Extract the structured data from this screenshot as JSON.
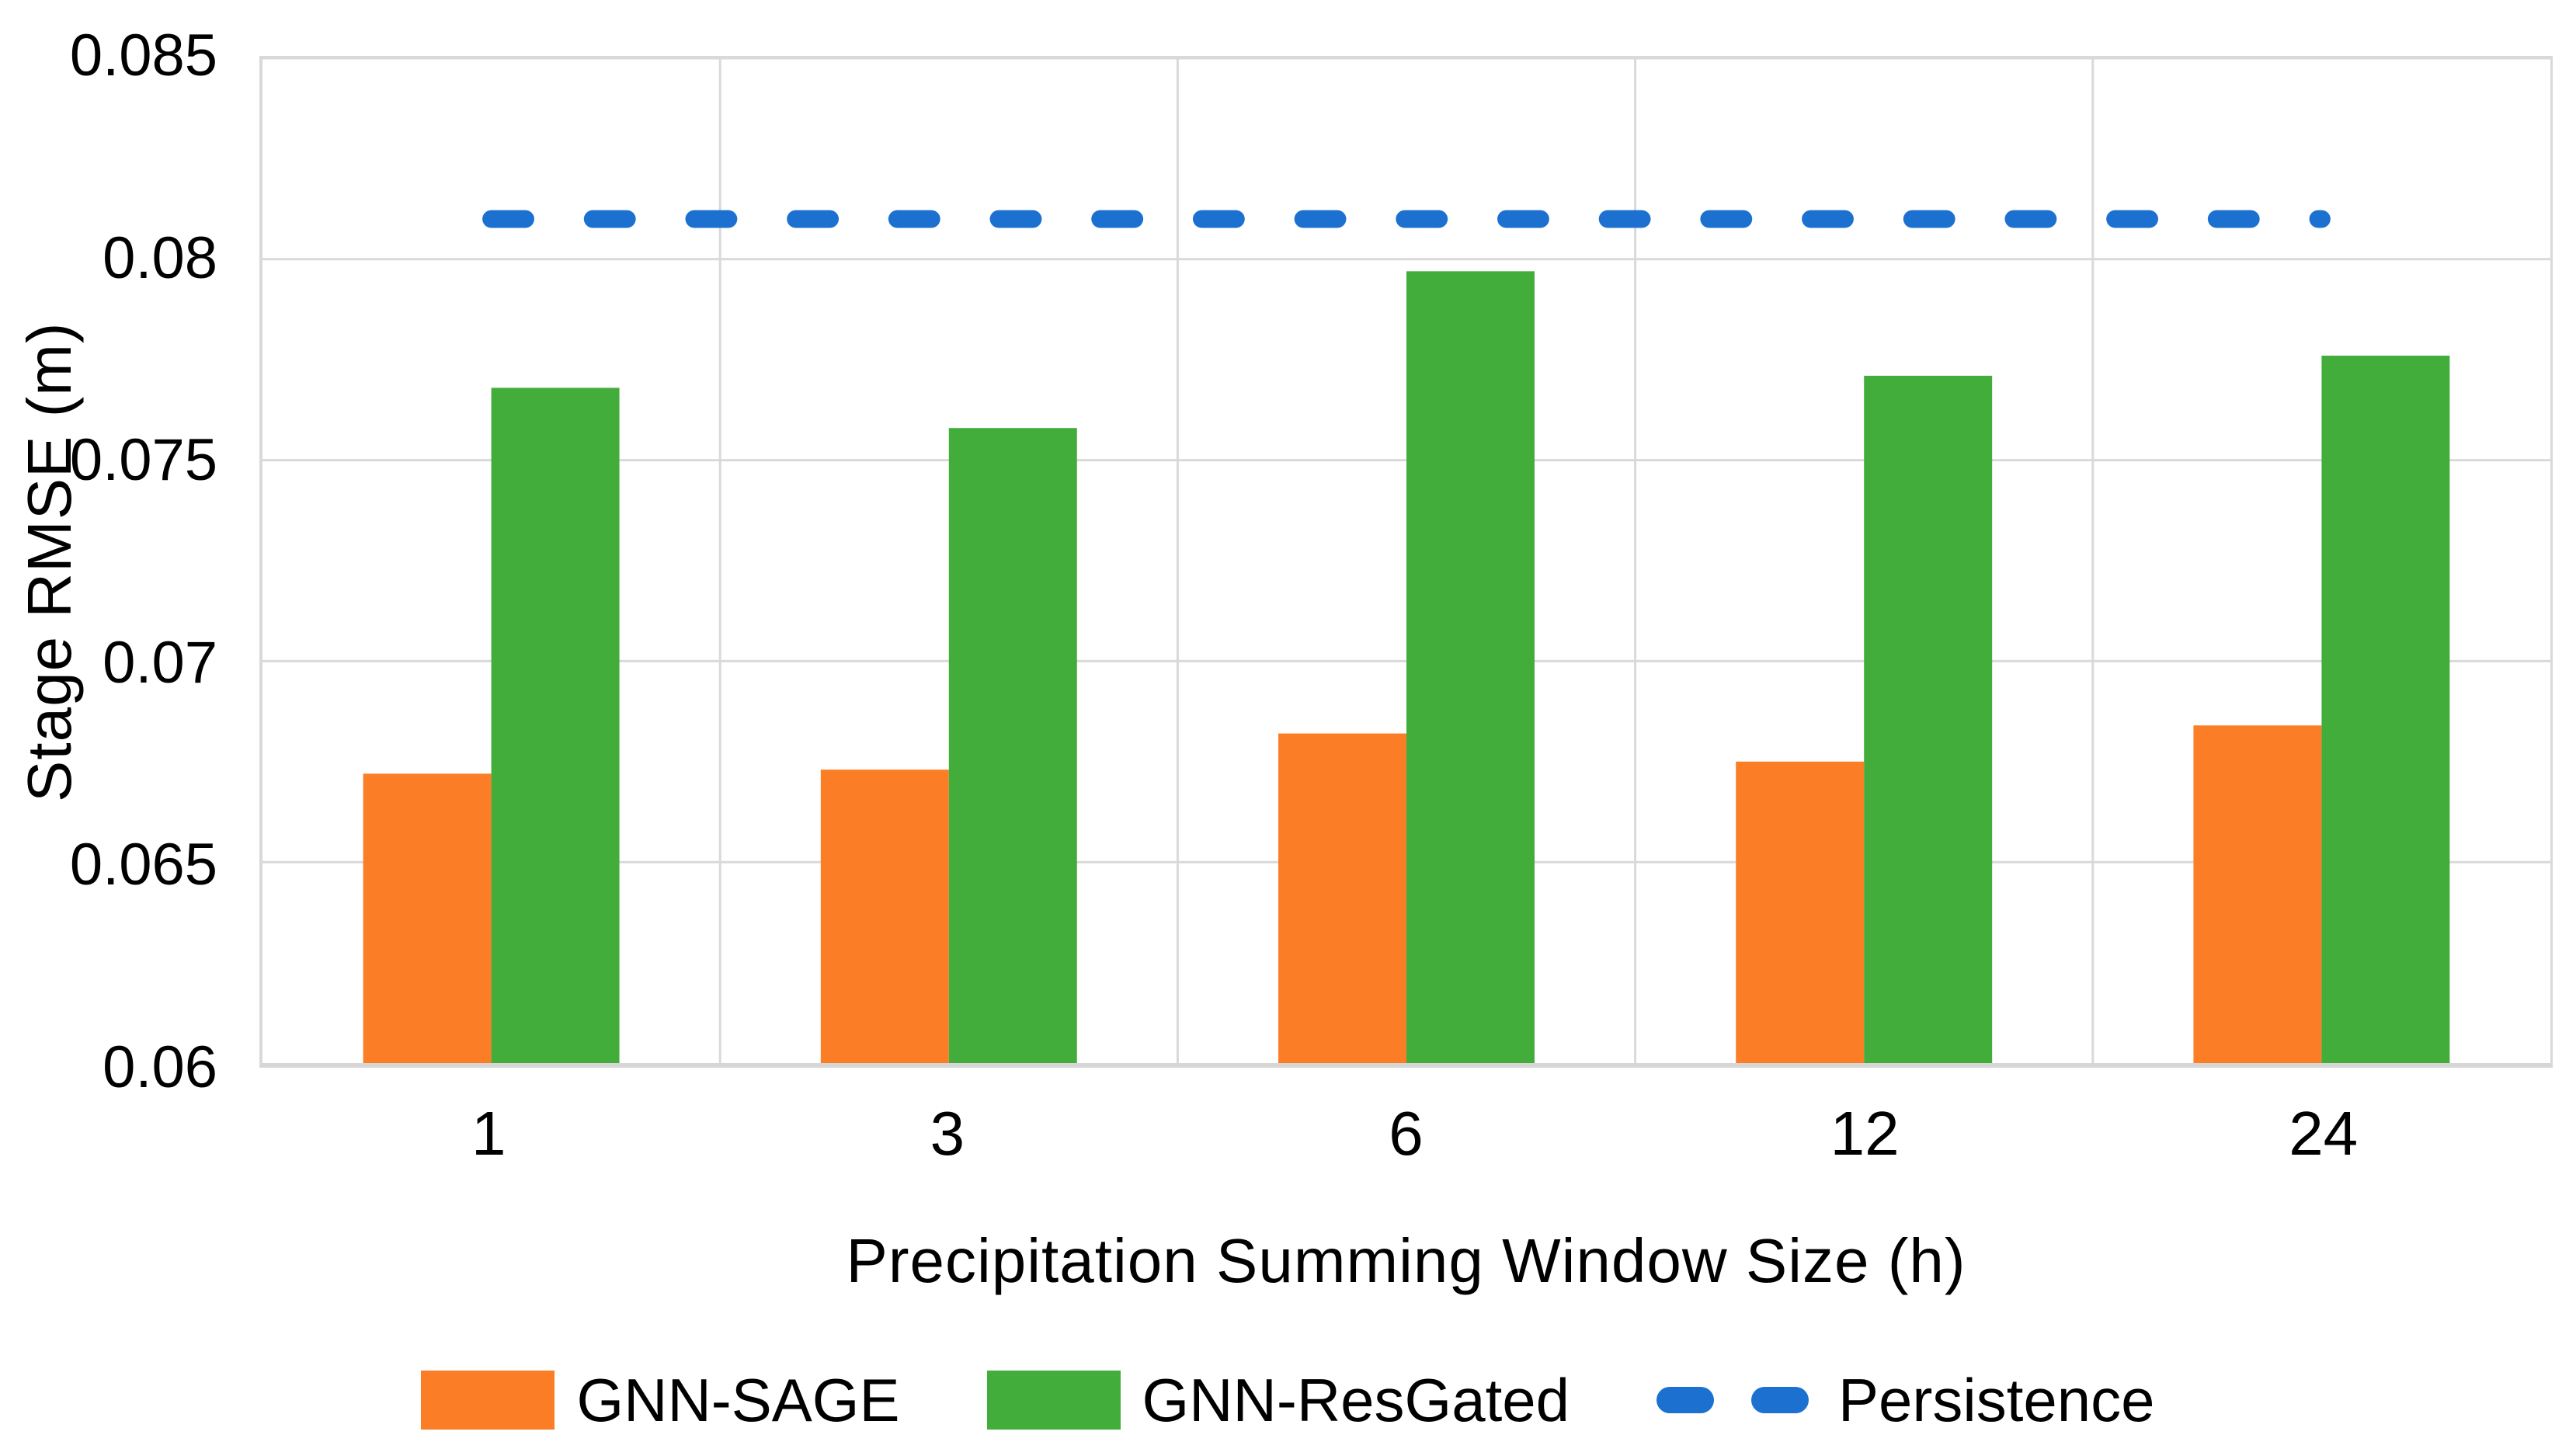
{
  "chart_data": {
    "type": "bar",
    "title": "",
    "categories": [
      "1",
      "3",
      "6",
      "12",
      "24"
    ],
    "series": [
      {
        "name": "GNN-SAGE",
        "kind": "bar",
        "color": "#FB7D26",
        "values": [
          0.0672,
          0.0673,
          0.0682,
          0.0675,
          0.0684
        ]
      },
      {
        "name": "GNN-ResGated",
        "kind": "bar",
        "color": "#43AD3B",
        "values": [
          0.0768,
          0.0758,
          0.0797,
          0.0771,
          0.0776
        ]
      },
      {
        "name": "Persistence",
        "kind": "dashed-line",
        "color": "#1C70D0",
        "values": [
          0.081,
          0.081,
          0.081,
          0.081,
          0.081
        ]
      }
    ],
    "xlabel": "Precipitation Summing Window Size (h)",
    "ylabel": "Stage RMSE (m)",
    "ylim": [
      0.06,
      0.085
    ],
    "yticks": [
      0.06,
      0.065,
      0.07,
      0.075,
      0.08,
      0.085
    ],
    "ytick_labels": [
      "0.06",
      "0.065",
      "0.07",
      "0.075",
      "0.08",
      "0.085"
    ],
    "grid": true,
    "gridline_color": "#D9D9D9",
    "legend_position": "bottom"
  }
}
